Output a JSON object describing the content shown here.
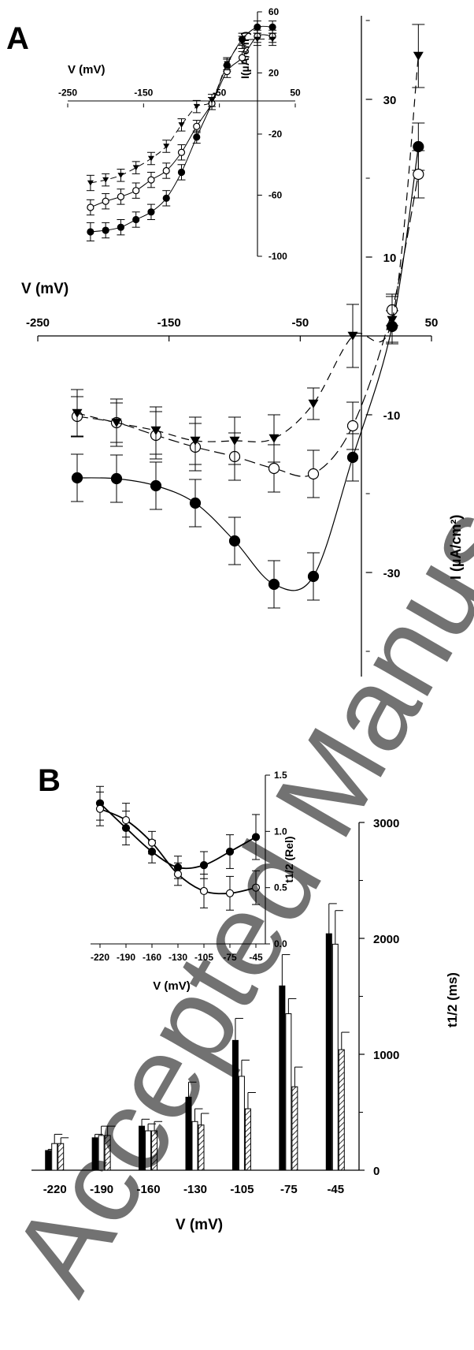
{
  "watermark": {
    "text": "Accepted Manuscript",
    "color": "#d9d9d9"
  },
  "chart_data": [
    {
      "panel_letter": "A",
      "type": "line",
      "xlabel": "V (mV)",
      "ylabel": "I (µA/cm²)",
      "xlim": [
        -250,
        50
      ],
      "ylim": [
        -40,
        40
      ],
      "x_ticks": [
        -250,
        -150,
        -50,
        50
      ],
      "y_ticks": [
        -30,
        -10,
        10,
        30
      ],
      "series": [
        {
          "marker": "filled-circle",
          "line": "solid",
          "x": [
            -220,
            -190,
            -160,
            -130,
            -100,
            -70,
            -40,
            -10,
            20,
            40
          ],
          "y": [
            -18,
            -18.1,
            -19,
            -21.2,
            -26,
            -31.5,
            -30.5,
            -15.4,
            1.2,
            24
          ],
          "err": [
            3,
            3,
            3,
            3,
            3,
            3,
            3,
            3,
            2,
            3
          ]
        },
        {
          "marker": "open-circle",
          "line": "long-dash",
          "x": [
            -220,
            -190,
            -160,
            -130,
            -100,
            -70,
            -40,
            -10,
            20,
            40
          ],
          "y": [
            -10.2,
            -11,
            -12.6,
            -14.1,
            -15.3,
            -16.8,
            -17.5,
            -11.4,
            3.3,
            20.5
          ],
          "err": [
            2.5,
            2.5,
            3,
            3,
            3,
            3,
            3,
            3,
            2,
            3
          ]
        },
        {
          "marker": "filled-triangle-down",
          "line": "dash",
          "x": [
            -220,
            -190,
            -160,
            -130,
            -100,
            -70,
            -40,
            -10,
            20,
            40
          ],
          "y": [
            -9.8,
            -11,
            -12,
            -13.3,
            -13.3,
            -13,
            -8.6,
            0,
            2,
            35.5
          ],
          "err": [
            3,
            3,
            3,
            3,
            3,
            3,
            2,
            4,
            3,
            4
          ]
        }
      ],
      "inset": {
        "xlabel": "V (mV)",
        "ylabel": "I(µA/cm²)",
        "xlim": [
          -250,
          50
        ],
        "ylim": [
          -100,
          60
        ],
        "x_ticks": [
          -250,
          -150,
          -50,
          50
        ],
        "y_ticks": [
          -100,
          -60,
          -20,
          20,
          60
        ],
        "series": [
          {
            "marker": "filled-circle",
            "line": "solid",
            "x": [
              -220,
              -200,
              -180,
              -160,
              -140,
              -120,
              -100,
              -80,
              -60,
              -40,
              -20,
              0,
              20
            ],
            "y": [
              -84,
              -83,
              -81,
              -76,
              -71,
              -62,
              -45,
              -22,
              0,
              25,
              42,
              50,
              50
            ],
            "err": [
              6,
              5,
              5,
              5,
              5,
              5,
              5,
              4,
              4,
              4,
              4,
              4,
              4
            ]
          },
          {
            "marker": "open-circle",
            "line": "solid",
            "x": [
              -220,
              -200,
              -180,
              -160,
              -140,
              -120,
              -100,
              -80,
              -60,
              -40,
              -20,
              0,
              20
            ],
            "y": [
              -68,
              -64,
              -61,
              -57,
              -50,
              -44,
              -32,
              -15,
              0,
              21,
              30,
              44,
              44
            ],
            "err": [
              5,
              5,
              5,
              5,
              5,
              5,
              5,
              4,
              4,
              4,
              4,
              4,
              4
            ]
          },
          {
            "marker": "filled-triangle-down",
            "line": "dash",
            "x": [
              -220,
              -200,
              -180,
              -160,
              -140,
              -120,
              -100,
              -80,
              -60,
              -40,
              -20,
              0,
              20
            ],
            "y": [
              -52,
              -50,
              -47,
              -42,
              -36,
              -28,
              -14,
              -2,
              2,
              26,
              40,
              42,
              42
            ],
            "err": [
              5,
              4,
              4,
              4,
              4,
              4,
              4,
              4,
              4,
              4,
              4,
              4,
              4
            ]
          }
        ]
      }
    },
    {
      "panel_letter": "B",
      "type": "bar",
      "xlabel": "V (mV)",
      "ylabel": "t1/2 (ms)",
      "ylim": [
        0,
        3000
      ],
      "y_ticks": [
        0,
        1000,
        2000,
        3000
      ],
      "categories": [
        "-220",
        "-190",
        "-160",
        "-130",
        "-105",
        "-75",
        "-45"
      ],
      "series": [
        {
          "fill": "black",
          "values": [
            170,
            280,
            380,
            630,
            1120,
            1590,
            2040
          ],
          "err": [
            10,
            30,
            60,
            130,
            190,
            270,
            260
          ]
        },
        {
          "fill": "white",
          "values": [
            230,
            300,
            340,
            420,
            810,
            1350,
            1950
          ],
          "err": [
            80,
            80,
            60,
            110,
            140,
            130,
            290
          ]
        },
        {
          "fill": "hatched",
          "values": [
            230,
            300,
            340,
            390,
            530,
            720,
            1040
          ],
          "err": [
            50,
            80,
            80,
            100,
            140,
            170,
            150
          ]
        }
      ],
      "inset": {
        "xlabel": "V (mV)",
        "ylabel": "t1/2 (Rel)",
        "ylim": [
          0,
          1.5
        ],
        "y_ticks": [
          "0.0",
          "0.5",
          "1.0",
          "1.5"
        ],
        "categories": [
          "-220",
          "-190",
          "-160",
          "-130",
          "-105",
          "-75",
          "-45"
        ],
        "series": [
          {
            "marker": "filled-circle",
            "line": "solid",
            "values": [
              1.25,
              1.03,
              0.82,
              0.68,
              0.7,
              0.82,
              0.95
            ],
            "err": [
              0.15,
              0.15,
              0.1,
              0.1,
              0.12,
              0.15,
              0.2
            ]
          },
          {
            "marker": "open-circle",
            "line": "solid",
            "values": [
              1.2,
              1.1,
              0.9,
              0.62,
              0.47,
              0.45,
              0.5
            ],
            "err": [
              0.15,
              0.15,
              0.1,
              0.1,
              0.15,
              0.15,
              0.15
            ]
          }
        ]
      }
    }
  ]
}
